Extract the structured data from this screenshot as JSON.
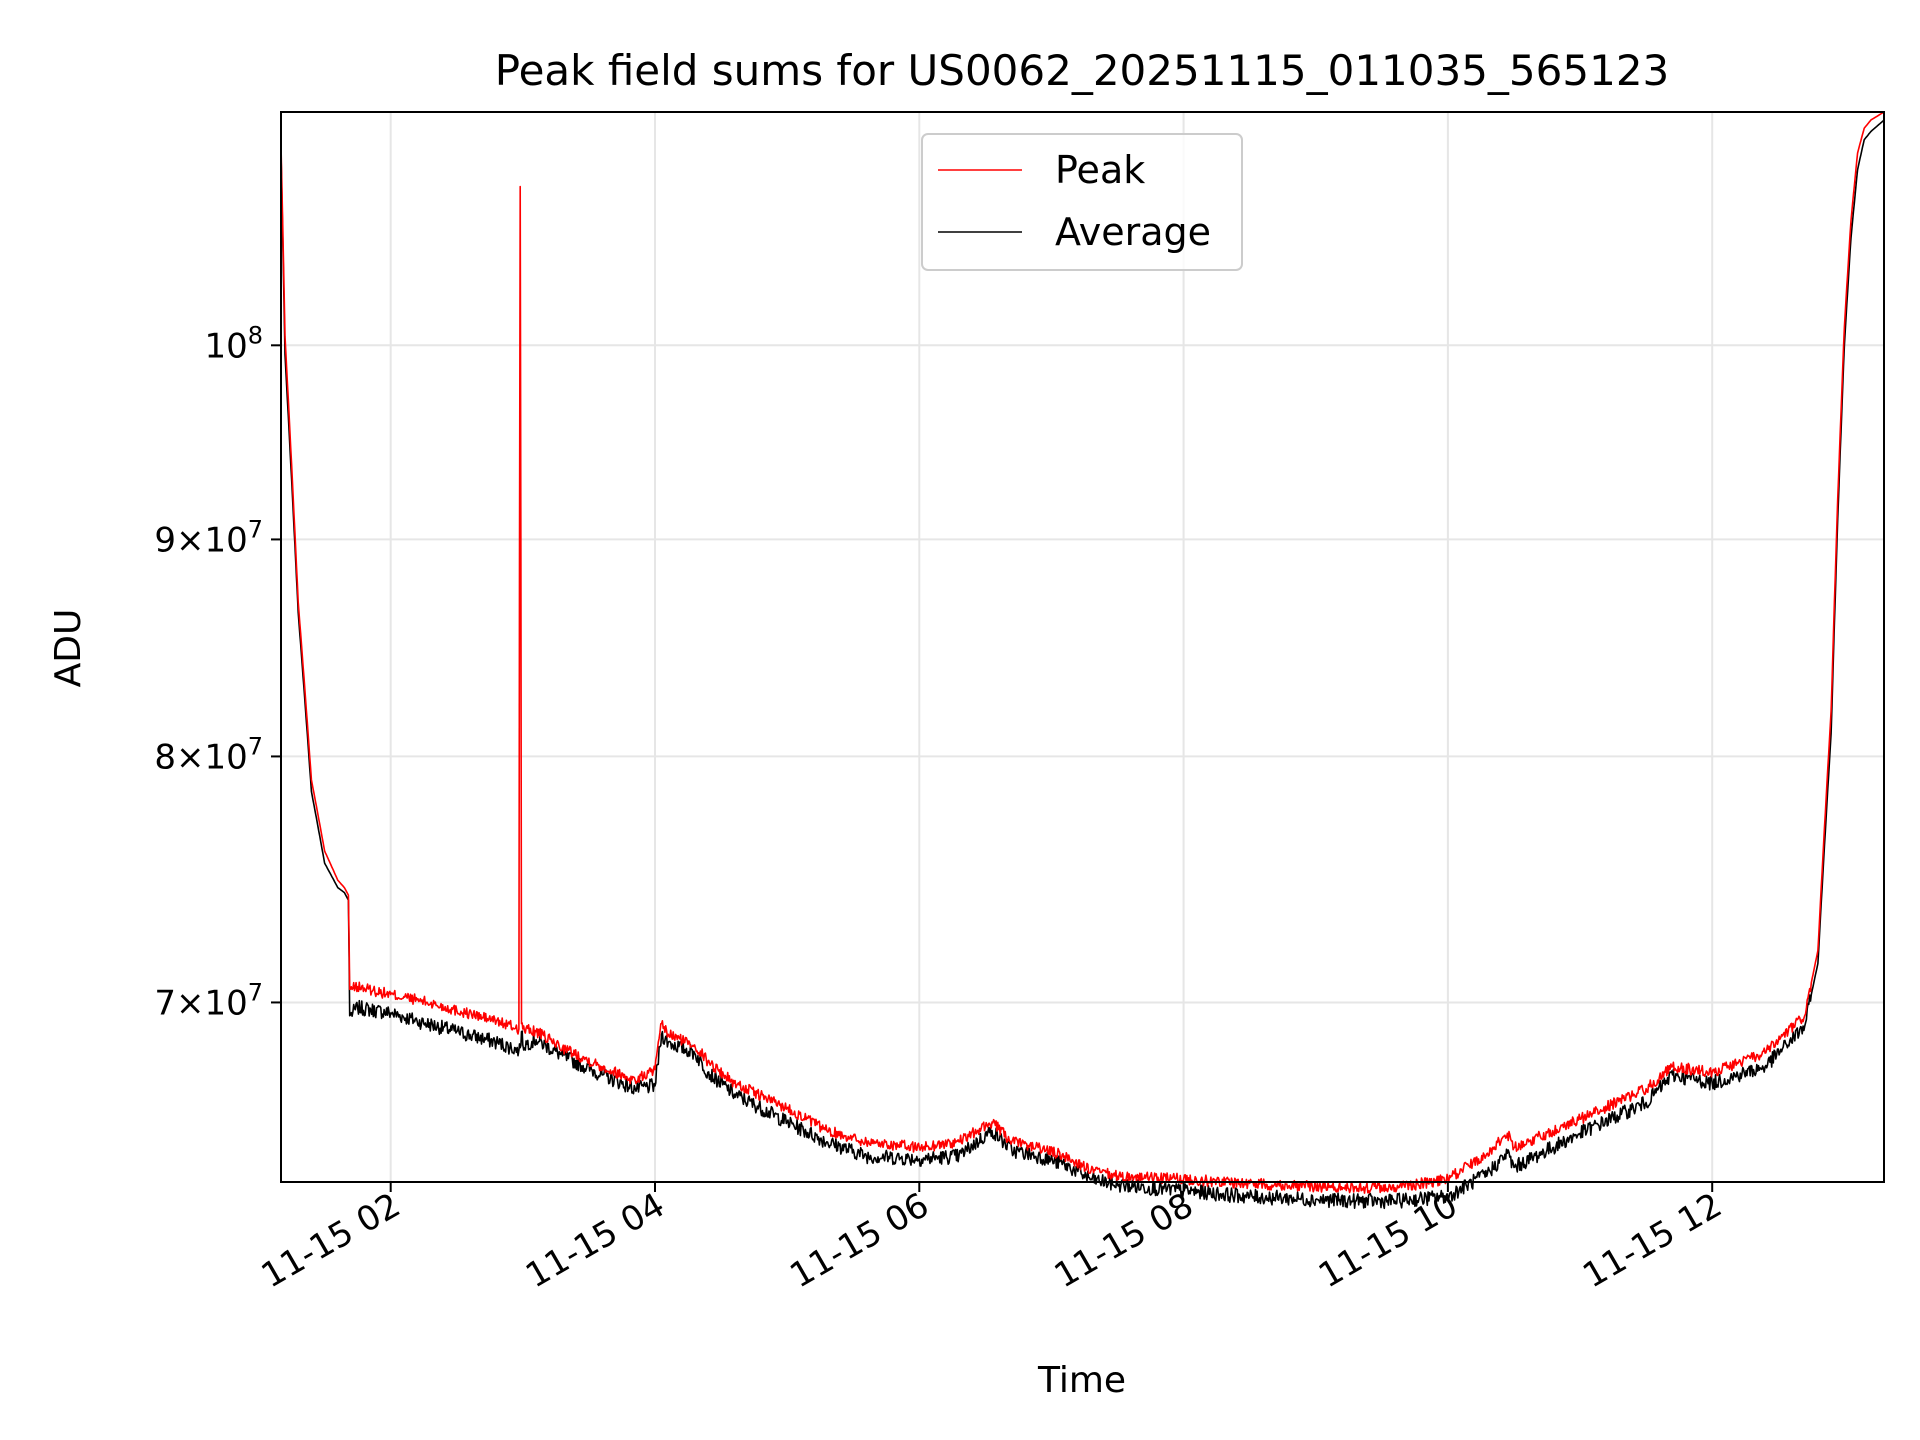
{
  "chart_data": {
    "type": "line",
    "title": "Peak field sums for US0062_20251115_011035_565123",
    "xlabel": "Time",
    "ylabel": "ADU",
    "xlim_hours": [
      1.17,
      13.3
    ],
    "ylim": [
      63500000,
      113500000
    ],
    "y_scale": "log",
    "grid": true,
    "legend": {
      "position": "top-center",
      "entries": [
        "Peak",
        "Average"
      ]
    },
    "x_ticks": [
      {
        "hour": 2,
        "label": "11-15 02"
      },
      {
        "hour": 4,
        "label": "11-15 04"
      },
      {
        "hour": 6,
        "label": "11-15 06"
      },
      {
        "hour": 8,
        "label": "11-15 08"
      },
      {
        "hour": 10,
        "label": "11-15 10"
      },
      {
        "hour": 12,
        "label": "11-15 12"
      }
    ],
    "y_ticks": [
      {
        "value": 70000000,
        "mantissa": "7",
        "exponent": "7"
      },
      {
        "value": 80000000,
        "mantissa": "8",
        "exponent": "7"
      },
      {
        "value": 90000000,
        "mantissa": "9",
        "exponent": "7"
      },
      {
        "value": 100000000,
        "mantissa": "",
        "exponent": "8"
      }
    ],
    "tick_base": "10",
    "tick_times": "×",
    "series": [
      {
        "name": "Peak",
        "color": "#ff0000",
        "x_hours": [
          1.17,
          1.2,
          1.3,
          1.4,
          1.5,
          1.6,
          1.65,
          1.68,
          1.69,
          1.75,
          2.0,
          2.2,
          2.5,
          2.8,
          2.97,
          2.98,
          2.99,
          3.0,
          3.1,
          3.3,
          3.6,
          3.85,
          4.0,
          4.05,
          4.1,
          4.3,
          4.4,
          4.6,
          5.0,
          5.3,
          5.6,
          6.0,
          6.3,
          6.55,
          6.7,
          6.9,
          7.1,
          7.3,
          7.5,
          8.0,
          8.5,
          9.0,
          9.3,
          9.6,
          10.0,
          10.3,
          10.45,
          10.5,
          11.0,
          11.5,
          11.7,
          12.0,
          12.4,
          12.7,
          12.8,
          12.9,
          12.95,
          13.0,
          13.05,
          13.1,
          13.15,
          13.2,
          13.3
        ],
        "values": [
          111500000,
          100500000,
          87000000,
          79000000,
          76000000,
          74800000,
          74500000,
          74200000,
          70500000,
          70600000,
          70300000,
          70100000,
          69700000,
          69300000,
          69000000,
          109000000,
          69200000,
          69000000,
          68900000,
          68300000,
          67600000,
          67100000,
          67500000,
          69200000,
          68800000,
          68400000,
          67800000,
          67000000,
          66100000,
          65300000,
          64900000,
          64700000,
          64900000,
          65600000,
          64900000,
          64700000,
          64400000,
          63900000,
          63700000,
          63600000,
          63450000,
          63350000,
          63300000,
          63300000,
          63600000,
          64500000,
          65200000,
          64700000,
          65700000,
          66800000,
          67600000,
          67400000,
          68100000,
          69500000,
          72000000,
          82000000,
          92000000,
          101000000,
          107000000,
          111000000,
          112500000,
          113000000,
          113500000
        ]
      },
      {
        "name": "Average",
        "color": "#000000",
        "x_hours": [
          1.17,
          1.2,
          1.3,
          1.4,
          1.5,
          1.6,
          1.65,
          1.68,
          1.69,
          1.75,
          2.0,
          2.2,
          2.5,
          2.8,
          2.97,
          2.98,
          2.99,
          3.0,
          3.1,
          3.3,
          3.6,
          3.85,
          4.0,
          4.05,
          4.1,
          4.3,
          4.4,
          4.6,
          5.0,
          5.3,
          5.6,
          6.0,
          6.3,
          6.55,
          6.7,
          6.9,
          7.1,
          7.3,
          7.5,
          8.0,
          8.5,
          9.0,
          9.3,
          9.6,
          10.0,
          10.3,
          10.45,
          10.5,
          11.0,
          11.5,
          11.7,
          12.0,
          12.4,
          12.7,
          12.8,
          12.9,
          12.95,
          13.0,
          13.05,
          13.1,
          13.15,
          13.2,
          13.3
        ],
        "values": [
          111000000,
          99500000,
          86500000,
          78500000,
          75500000,
          74500000,
          74300000,
          74000000,
          69500000,
          69800000,
          69600000,
          69300000,
          68900000,
          68500000,
          68200000,
          68300000,
          68900000,
          68400000,
          68600000,
          68000000,
          67300000,
          66800000,
          66900000,
          68800000,
          68500000,
          68100000,
          67400000,
          66600000,
          65600000,
          64900000,
          64400000,
          64300000,
          64400000,
          65300000,
          64600000,
          64400000,
          64100000,
          63600000,
          63400000,
          63200000,
          63000000,
          62900000,
          62850000,
          62850000,
          63000000,
          63800000,
          64500000,
          64000000,
          65200000,
          66300000,
          67300000,
          67000000,
          67600000,
          69100000,
          71500000,
          81000000,
          91000000,
          100000000,
          106000000,
          110000000,
          111800000,
          112300000,
          113000000
        ]
      }
    ]
  }
}
